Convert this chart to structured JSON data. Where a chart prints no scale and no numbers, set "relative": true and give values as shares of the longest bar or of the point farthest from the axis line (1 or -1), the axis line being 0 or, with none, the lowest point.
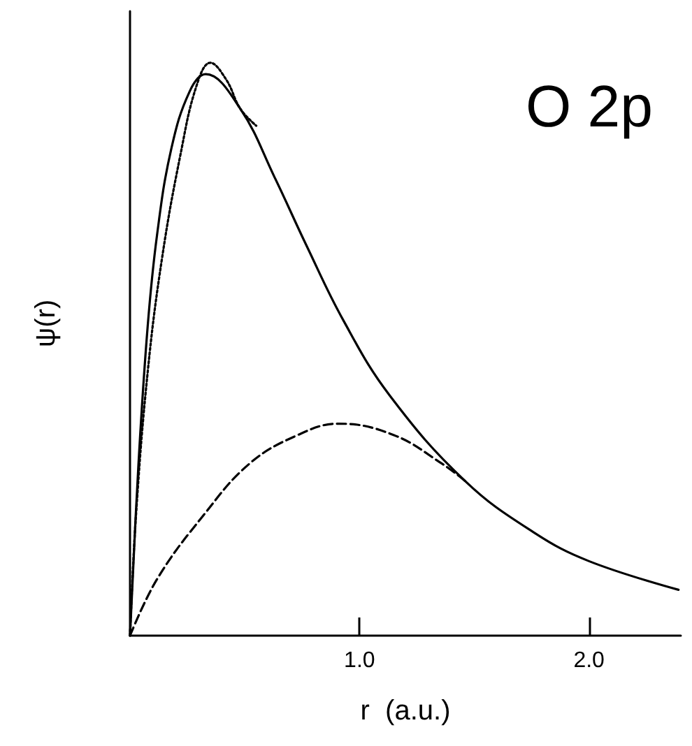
{
  "chart_data": {
    "type": "line",
    "relative": true,
    "xlabel": "r  (a.u.)",
    "ylabel": "ψ(r)",
    "annotations": [
      "O 2p"
    ],
    "xlim": [
      0,
      2.4
    ],
    "xticks": [
      {
        "value": 1,
        "label": "1.0"
      },
      {
        "value": 2,
        "label": "2.0"
      }
    ],
    "grid": false,
    "marker": "none",
    "series": [
      {
        "color": "#000000",
        "line_style": "solid",
        "x": [
          0,
          0.037,
          0.077,
          0.118,
          0.18,
          0.26,
          0.33,
          0.48,
          0.63,
          0.77,
          0.93,
          1.13,
          1.46,
          1.76,
          2.0,
          2.39
        ],
        "values": [
          0,
          0.3,
          0.54,
          0.7,
          0.85,
          0.95,
          0.98,
          0.92,
          0.8,
          0.68,
          0.55,
          0.42,
          0.27,
          0.18,
          0.13,
          0.08
        ]
      },
      {
        "color": "#000000",
        "line_style": "dotted",
        "x": [
          0,
          0.026,
          0.077,
          0.14,
          0.22,
          0.29,
          0.35,
          0.42,
          0.48,
          0.55
        ],
        "values": [
          0,
          0.21,
          0.46,
          0.66,
          0.84,
          0.96,
          1.0,
          0.97,
          0.92,
          0.89
        ]
      },
      {
        "color": "#000000",
        "line_style": "dashed",
        "x": [
          0,
          0.12,
          0.32,
          0.52,
          0.73,
          0.91,
          1.15,
          1.36,
          1.46
        ],
        "values": [
          0,
          0.1,
          0.21,
          0.3,
          0.35,
          0.37,
          0.35,
          0.3,
          0.27
        ]
      }
    ]
  }
}
